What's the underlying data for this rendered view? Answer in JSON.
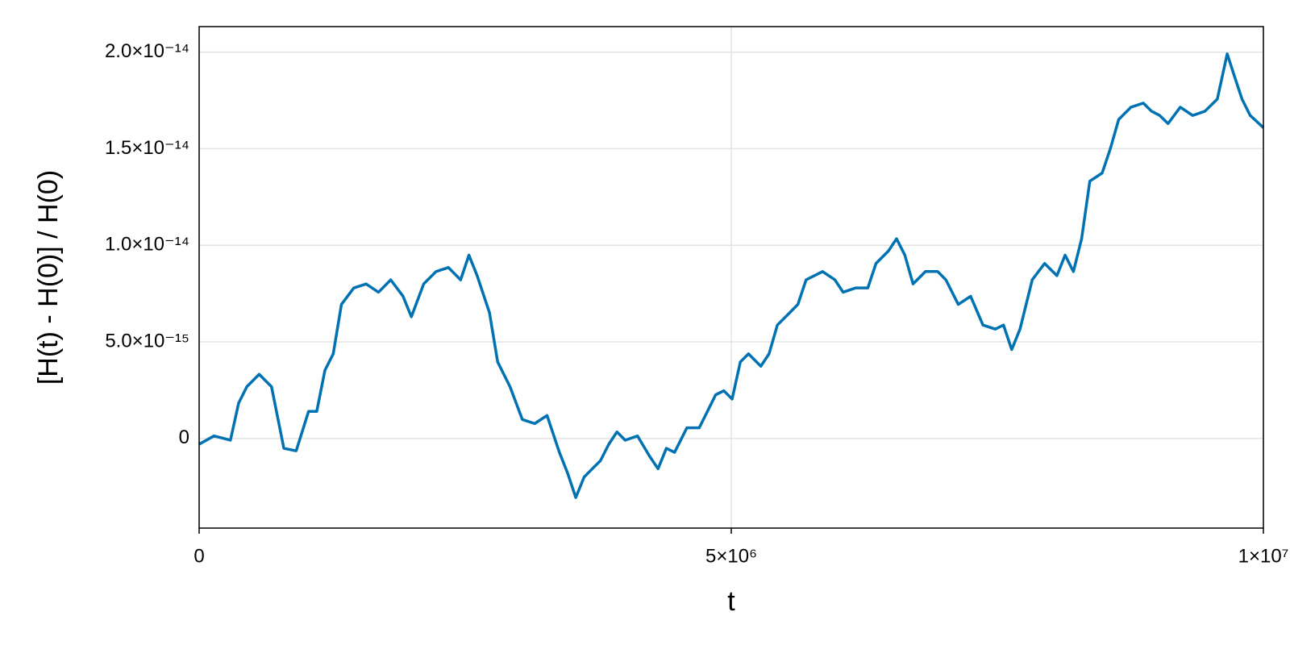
{
  "chart_data": {
    "type": "line",
    "xlabel": "t",
    "ylabel": "[H(t) - H(0)] / H(0)",
    "xlim": [
      0,
      10000000
    ],
    "ylim": [
      -4.64e-15,
      2.132e-14
    ],
    "xticks": [
      0,
      {
        "value": 5000000,
        "label": "5×10⁶"
      },
      {
        "value": 10000000,
        "label": "1×10⁷"
      }
    ],
    "yticks": [
      0,
      {
        "value": 5e-15,
        "label": "5.0×10⁻¹⁵"
      },
      {
        "value": 1e-14,
        "label": "1.0×10⁻¹⁴"
      },
      {
        "value": 1.5e-14,
        "label": "1.5×10⁻¹⁴"
      },
      {
        "value": 2e-14,
        "label": "2.0×10⁻¹⁴"
      }
    ],
    "grid": true,
    "x": [
      0,
      139000,
      294000,
      371000,
      448000,
      564000,
      680000,
      796000,
      912000,
      1028000,
      1105000,
      1182000,
      1260000,
      1337000,
      1453000,
      1569000,
      1685000,
      1800000,
      1916000,
      1994000,
      2110000,
      2226000,
      2342000,
      2457000,
      2535000,
      2612000,
      2728000,
      2805000,
      2921000,
      3037000,
      3153000,
      3269000,
      3385000,
      3462000,
      3539000,
      3617000,
      3694000,
      3771000,
      3849000,
      3926000,
      4003000,
      4119000,
      4235000,
      4312000,
      4390000,
      4467000,
      4583000,
      4699000,
      4776000,
      4853000,
      4930000,
      5008000,
      5085000,
      5162000,
      5278000,
      5355000,
      5433000,
      5549000,
      5626000,
      5703000,
      5858000,
      5974000,
      6051000,
      6167000,
      6283000,
      6360000,
      6476000,
      6553000,
      6631000,
      6708000,
      6824000,
      6940000,
      7017000,
      7133000,
      7249000,
      7365000,
      7481000,
      7558000,
      7635000,
      7713000,
      7828000,
      7944000,
      8060000,
      8137000,
      8215000,
      8292000,
      8369000,
      8485000,
      8563000,
      8640000,
      8756000,
      8872000,
      8949000,
      9026000,
      9104000,
      9219000,
      9335000,
      9451000,
      9567000,
      9660000,
      9722000,
      9799000,
      9876000,
      10000000
    ],
    "series": [
      {
        "color": "#0072b2",
        "values": [
          -3e-16,
          1.3e-16,
          -9e-17,
          1.83e-15,
          2.68e-15,
          3.32e-15,
          2.68e-15,
          -5.1e-16,
          -6.4e-16,
          1.4e-15,
          1.4e-15,
          3.53e-15,
          4.38e-15,
          6.94e-15,
          7.79e-15,
          8e-15,
          7.57e-15,
          8.21e-15,
          7.36e-15,
          6.3e-15,
          8e-15,
          8.64e-15,
          8.85e-15,
          8.21e-15,
          9.49e-15,
          8.43e-15,
          6.51e-15,
          3.96e-15,
          2.68e-15,
          9.8e-16,
          7.7e-16,
          1.19e-15,
          -7.2e-16,
          -1.79e-15,
          -3.06e-15,
          -2e-15,
          -1.57e-15,
          -1.15e-15,
          -3e-16,
          3.4e-16,
          -9e-17,
          1.3e-16,
          -9.4e-16,
          -1.57e-15,
          -5.1e-16,
          -7.2e-16,
          5.5e-16,
          5.5e-16,
          1.4e-15,
          2.26e-15,
          2.47e-15,
          2.04e-15,
          3.96e-15,
          4.38e-15,
          3.74e-15,
          4.38e-15,
          5.87e-15,
          6.51e-15,
          6.94e-15,
          8.21e-15,
          8.64e-15,
          8.21e-15,
          7.57e-15,
          7.79e-15,
          7.79e-15,
          9.06e-15,
          9.7e-15,
          1.034e-14,
          9.49e-15,
          8e-15,
          8.64e-15,
          8.64e-15,
          8.21e-15,
          6.94e-15,
          7.36e-15,
          5.87e-15,
          5.66e-15,
          5.87e-15,
          4.6e-15,
          5.66e-15,
          8.21e-15,
          9.06e-15,
          8.43e-15,
          9.49e-15,
          8.64e-15,
          1.034e-14,
          1.332e-14,
          1.374e-14,
          1.502e-14,
          1.651e-14,
          1.715e-14,
          1.736e-14,
          1.694e-14,
          1.672e-14,
          1.63e-14,
          1.715e-14,
          1.672e-14,
          1.694e-14,
          1.757e-14,
          1.991e-14,
          1.885e-14,
          1.757e-14,
          1.672e-14,
          1.609e-14
        ]
      }
    ]
  }
}
